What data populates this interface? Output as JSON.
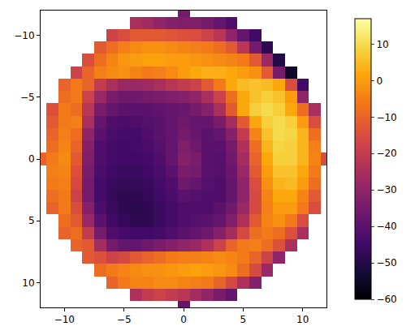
{
  "chart_data": {
    "type": "heatmap",
    "x": [
      -12,
      -11,
      -10,
      -9,
      -8,
      -7,
      -6,
      -5,
      -4,
      -3,
      -2,
      -1,
      0,
      1,
      2,
      3,
      4,
      5,
      6,
      7,
      8,
      9,
      10,
      11,
      12
    ],
    "y": [
      -12,
      -11,
      -10,
      -9,
      -8,
      -7,
      -6,
      -5,
      -4,
      -3,
      -2,
      -1,
      0,
      1,
      2,
      3,
      4,
      5,
      6,
      7,
      8,
      9,
      10,
      11,
      12
    ],
    "z": [
      [
        null,
        null,
        null,
        null,
        null,
        null,
        null,
        null,
        null,
        null,
        null,
        null,
        -35,
        null,
        null,
        null,
        null,
        null,
        null,
        null,
        null,
        null,
        null,
        null,
        null
      ],
      [
        null,
        null,
        null,
        null,
        null,
        null,
        null,
        null,
        -25,
        -27,
        -30,
        -32,
        -33,
        -33,
        -35,
        -38,
        -42,
        null,
        null,
        null,
        null,
        null,
        null,
        null,
        null
      ],
      [
        null,
        null,
        null,
        null,
        null,
        null,
        -18,
        -15,
        -12,
        -12,
        -12,
        -13,
        -14,
        -15,
        -18,
        -22,
        -30,
        -38,
        -45,
        null,
        null,
        null,
        null,
        null,
        null
      ],
      [
        null,
        null,
        null,
        null,
        null,
        -12,
        -8,
        -5,
        -3,
        -2,
        -2,
        -3,
        -4,
        -5,
        -6,
        -8,
        -12,
        -22,
        -35,
        -48,
        null,
        null,
        null,
        null,
        null
      ],
      [
        null,
        null,
        null,
        null,
        -15,
        -8,
        -4,
        -1,
        0,
        1,
        1,
        0,
        0,
        -1,
        -2,
        -3,
        -4,
        -6,
        -12,
        -28,
        -50,
        null,
        null,
        null,
        null
      ],
      [
        null,
        null,
        null,
        -18,
        -10,
        -5,
        -3,
        -2,
        -4,
        -6,
        -5,
        -3,
        0,
        2,
        3,
        3,
        2,
        0,
        -2,
        -12,
        -35,
        -55,
        null,
        null,
        null
      ],
      [
        null,
        null,
        -10,
        -6,
        -10,
        -20,
        -25,
        -28,
        -28,
        -27,
        -25,
        -22,
        -20,
        -18,
        -12,
        -6,
        2,
        5,
        6,
        5,
        2,
        -15,
        -45,
        null,
        null
      ],
      [
        null,
        null,
        -8,
        -6,
        -18,
        -28,
        -34,
        -36,
        -36,
        -35,
        -34,
        -33,
        -32,
        -30,
        -25,
        -18,
        -8,
        2,
        6,
        8,
        6,
        0,
        -30,
        null,
        null
      ],
      [
        null,
        -14,
        -6,
        -8,
        -22,
        -34,
        -38,
        -40,
        -40,
        -40,
        -39,
        -38,
        -37,
        -35,
        -32,
        -25,
        -12,
        2,
        8,
        10,
        8,
        2,
        -8,
        -25,
        null
      ],
      [
        null,
        -12,
        -6,
        -5,
        -25,
        -38,
        -42,
        -43,
        -42,
        -41,
        -40,
        -38,
        -36,
        -38,
        -38,
        -34,
        -26,
        -12,
        2,
        8,
        10,
        8,
        0,
        -15,
        null
      ],
      [
        null,
        -10,
        -5,
        -8,
        -30,
        -40,
        -43,
        -44,
        -44,
        -42,
        -40,
        -38,
        -35,
        -37,
        -40,
        -38,
        -32,
        -20,
        -4,
        6,
        10,
        9,
        4,
        -8,
        null
      ],
      [
        null,
        -8,
        -4,
        -10,
        -32,
        -42,
        -44,
        -45,
        -44,
        -43,
        -41,
        -38,
        -33,
        -36,
        -40,
        -40,
        -35,
        -24,
        -8,
        4,
        9,
        8,
        4,
        -5,
        null
      ],
      [
        -10,
        -6,
        -3,
        -12,
        -33,
        -42,
        -44,
        -45,
        -45,
        -44,
        -42,
        -38,
        -32,
        -34,
        -40,
        -41,
        -36,
        -26,
        -10,
        2,
        8,
        8,
        4,
        -4,
        -15
      ],
      [
        null,
        -5,
        -4,
        -14,
        -34,
        -43,
        -45,
        -46,
        -46,
        -45,
        -43,
        -40,
        -34,
        -35,
        -40,
        -41,
        -37,
        -28,
        -12,
        0,
        6,
        6,
        2,
        -6,
        null
      ],
      [
        null,
        -6,
        -5,
        -16,
        -35,
        -44,
        -46,
        -47,
        -47,
        -46,
        -44,
        -42,
        -36,
        -38,
        -41,
        -42,
        -38,
        -30,
        -15,
        -2,
        4,
        5,
        0,
        -8,
        null
      ],
      [
        null,
        -8,
        -6,
        -18,
        -35,
        -44,
        -47,
        -48,
        -48,
        -47,
        -45,
        -43,
        -40,
        -41,
        -42,
        -42,
        -38,
        -30,
        -16,
        -4,
        2,
        2,
        -4,
        -12,
        null
      ],
      [
        null,
        -10,
        -6,
        -15,
        -32,
        -43,
        -46,
        -48,
        -49,
        -48,
        -46,
        -44,
        -42,
        -42,
        -42,
        -40,
        -36,
        -28,
        -16,
        -5,
        0,
        0,
        -6,
        -15,
        null
      ],
      [
        null,
        null,
        -8,
        -12,
        -28,
        -40,
        -45,
        -47,
        -48,
        -48,
        -46,
        -44,
        -42,
        -41,
        -40,
        -38,
        -33,
        -24,
        -12,
        -4,
        -2,
        -6,
        -15,
        null,
        null
      ],
      [
        null,
        null,
        -10,
        -8,
        -20,
        -35,
        -42,
        -44,
        -45,
        -45,
        -44,
        -42,
        -40,
        -38,
        -36,
        -32,
        -26,
        -16,
        -8,
        -6,
        -8,
        -14,
        -25,
        null,
        null
      ],
      [
        null,
        null,
        null,
        -10,
        -12,
        -26,
        -35,
        -38,
        -38,
        -36,
        -34,
        -32,
        -30,
        -28,
        -24,
        -18,
        -10,
        -6,
        -5,
        -8,
        -14,
        -25,
        null,
        null,
        null
      ],
      [
        null,
        null,
        null,
        null,
        -12,
        -14,
        -18,
        -16,
        -12,
        -10,
        -8,
        -6,
        -5,
        -5,
        -4,
        -3,
        -4,
        -6,
        -10,
        -18,
        -30,
        null,
        null,
        null,
        null
      ],
      [
        null,
        null,
        null,
        null,
        null,
        -8,
        -6,
        -4,
        -3,
        -2,
        -2,
        -1,
        0,
        1,
        0,
        -1,
        -3,
        -8,
        -16,
        -28,
        null,
        null,
        null,
        null,
        null
      ],
      [
        null,
        null,
        null,
        null,
        null,
        null,
        -10,
        -6,
        -4,
        -4,
        -3,
        -3,
        -4,
        -5,
        -6,
        -10,
        -16,
        -24,
        -32,
        null,
        null,
        null,
        null,
        null,
        null
      ],
      [
        null,
        null,
        null,
        null,
        null,
        null,
        null,
        null,
        -24,
        -20,
        -18,
        -20,
        -22,
        -26,
        -30,
        -34,
        -38,
        null,
        null,
        null,
        null,
        null,
        null,
        null,
        null
      ],
      [
        null,
        null,
        null,
        null,
        null,
        null,
        null,
        null,
        null,
        null,
        null,
        null,
        -38,
        null,
        null,
        null,
        null,
        null,
        null,
        null,
        null,
        null,
        null,
        null,
        null
      ]
    ],
    "xlim": [
      -12,
      12
    ],
    "ylim": [
      12,
      -12
    ],
    "xticks": [
      {
        "value": -10,
        "label": "−10"
      },
      {
        "value": -5,
        "label": "−5"
      },
      0,
      5,
      10
    ],
    "yticks": [
      {
        "value": -10,
        "label": "−10"
      },
      {
        "value": -5,
        "label": "−5"
      },
      0,
      5,
      10
    ],
    "zlim": [
      -60,
      17
    ],
    "zticks": [
      {
        "value": -60,
        "label": "−60"
      },
      {
        "value": -50,
        "label": "−50"
      },
      {
        "value": -40,
        "label": "−40"
      },
      {
        "value": -30,
        "label": "−30"
      },
      {
        "value": -20,
        "label": "−20"
      },
      {
        "value": -10,
        "label": "−10"
      },
      0,
      10
    ],
    "grid": false
  }
}
